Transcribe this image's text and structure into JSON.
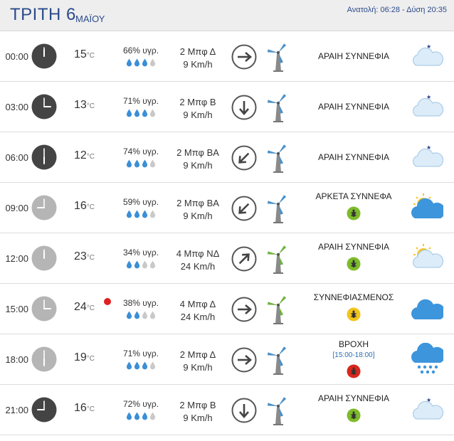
{
  "header": {
    "day": "ΤΡΙΤΗ 6",
    "month": "ΜΑΪΟΥ",
    "sun": "Ανατολή: 06:28  - Δύση 20:35"
  },
  "colors": {
    "accent": "#2b4a8b",
    "drop_full": "#3b8fd6",
    "drop_empty": "#c9c9c9",
    "wind_blue": "#4a90c8",
    "wind_green": "#6cb33f"
  },
  "rows": [
    {
      "time": "00:00",
      "temp": "15",
      "unit": "°C",
      "hot": false,
      "humidity": "66% υγρ.",
      "drops": 3,
      "wind_b": "2 Μπφ Δ",
      "wind_kmh": "9 Km/h",
      "wind_dir": "E",
      "turbine": "blue",
      "cond": "ΑΡΑΙΗ ΣΥΝΝΕΦΙΑ",
      "range": "",
      "bug": "none",
      "icon": "moon-cloud-icon",
      "night": true
    },
    {
      "time": "03:00",
      "temp": "13",
      "unit": "°C",
      "hot": false,
      "humidity": "71% υγρ.",
      "drops": 3,
      "wind_b": "2 Μπφ Β",
      "wind_kmh": "9 Km/h",
      "wind_dir": "S",
      "turbine": "blue",
      "cond": "ΑΡΑΙΗ ΣΥΝΝΕΦΙΑ",
      "range": "",
      "bug": "none",
      "icon": "moon-cloud-icon",
      "night": true
    },
    {
      "time": "06:00",
      "temp": "12",
      "unit": "°C",
      "hot": false,
      "humidity": "74% υγρ.",
      "drops": 3,
      "wind_b": "2 Μπφ ΒΑ",
      "wind_kmh": "9 Km/h",
      "wind_dir": "SW",
      "turbine": "blue",
      "cond": "ΑΡΑΙΗ ΣΥΝΝΕΦΙΑ",
      "range": "",
      "bug": "none",
      "icon": "moon-cloud-icon",
      "night": true
    },
    {
      "time": "09:00",
      "temp": "16",
      "unit": "°C",
      "hot": false,
      "humidity": "59% υγρ.",
      "drops": 3,
      "wind_b": "2 Μπφ ΒΑ",
      "wind_kmh": "9 Km/h",
      "wind_dir": "SW",
      "turbine": "blue",
      "cond": "ΑΡΚΕΤΑ ΣΥΝΝΕΦΑ",
      "range": "",
      "bug": "green",
      "icon": "sun-cloud-icon",
      "night": false
    },
    {
      "time": "12:00",
      "temp": "23",
      "unit": "°C",
      "hot": false,
      "humidity": "34% υγρ.",
      "drops": 2,
      "wind_b": "4 Μπφ ΝΔ",
      "wind_kmh": "24 Km/h",
      "wind_dir": "NE",
      "turbine": "green",
      "cond": "ΑΡΑΙΗ ΣΥΝΝΕΦΙΑ",
      "range": "",
      "bug": "green",
      "icon": "sun-cloud-light-icon",
      "night": false
    },
    {
      "time": "15:00",
      "temp": "24",
      "unit": "°C",
      "hot": true,
      "humidity": "38% υγρ.",
      "drops": 2,
      "wind_b": "4 Μπφ Δ",
      "wind_kmh": "24 Km/h",
      "wind_dir": "E",
      "turbine": "green",
      "cond": "ΣΥΝΝΕΦΙΑΣΜΕΝΟΣ",
      "range": "",
      "bug": "yellow",
      "icon": "cloud-icon",
      "night": false
    },
    {
      "time": "18:00",
      "temp": "19",
      "unit": "°C",
      "hot": false,
      "humidity": "71% υγρ.",
      "drops": 3,
      "wind_b": "2 Μπφ Δ",
      "wind_kmh": "9 Km/h",
      "wind_dir": "E",
      "turbine": "blue",
      "cond": "ΒΡΟΧΗ",
      "range": "[15:00-18:00]",
      "bug": "red",
      "icon": "rain-cloud-icon",
      "night": false
    },
    {
      "time": "21:00",
      "temp": "16",
      "unit": "°C",
      "hot": false,
      "humidity": "72% υγρ.",
      "drops": 3,
      "wind_b": "2 Μπφ Β",
      "wind_kmh": "9 Km/h",
      "wind_dir": "S",
      "turbine": "blue",
      "cond": "ΑΡΑΙΗ ΣΥΝΝΕΦΙΑ",
      "range": "",
      "bug": "green",
      "icon": "moon-cloud-icon",
      "night": true
    }
  ]
}
